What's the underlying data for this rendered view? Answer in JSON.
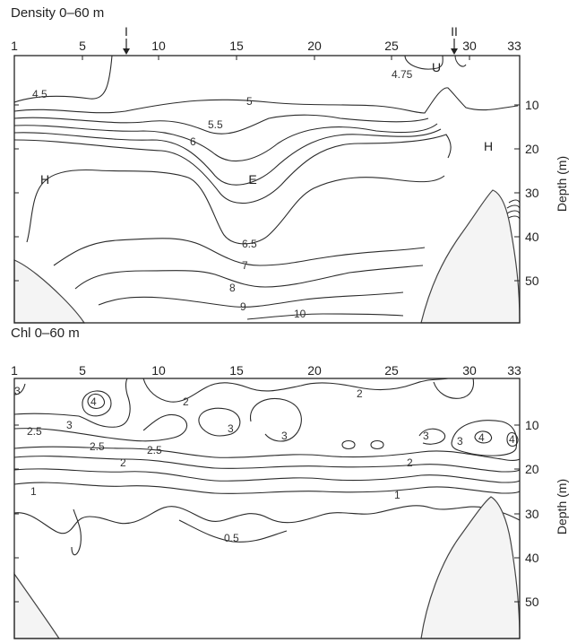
{
  "charts": [
    {
      "title": "Density 0–60 m",
      "station_ticks": [
        "1",
        "5",
        "10",
        "15",
        "20",
        "25",
        "30",
        "33"
      ],
      "depth_ticks": [
        "10",
        "20",
        "30",
        "40",
        "50"
      ],
      "depth_axis_label": "Depth (m)",
      "markers": [
        "I",
        "II"
      ],
      "region_labels": [
        "H",
        "E",
        "H",
        "U"
      ],
      "contour_labels": [
        "4.5",
        "4.75",
        "5",
        "5.5",
        "6",
        "6.5",
        "7",
        "8",
        "9",
        "10"
      ]
    },
    {
      "title": "Chl 0–60 m",
      "station_ticks": [
        "1",
        "5",
        "10",
        "15",
        "20",
        "25",
        "30",
        "33"
      ],
      "depth_ticks": [
        "10",
        "20",
        "30",
        "40",
        "50"
      ],
      "depth_axis_label": "Depth (m)",
      "contour_labels": [
        "3",
        "4",
        "2.5",
        "3",
        "2",
        "2.5",
        "2",
        "2.5",
        "3",
        "3",
        "2",
        "3",
        "4",
        "4",
        "2",
        "1",
        "1",
        "0.5",
        "3"
      ]
    }
  ],
  "chart_data": [
    {
      "type": "heatmap",
      "title": "Density 0–60 m",
      "xlabel": "",
      "ylabel": "Depth (m)",
      "xlim": [
        1,
        33
      ],
      "ylim": [
        0,
        60
      ],
      "x_ticks": [
        1,
        5,
        10,
        15,
        20,
        25,
        30,
        33
      ],
      "y_ticks": [
        10,
        20,
        30,
        40,
        50
      ],
      "contour_levels": [
        4.5,
        4.75,
        5,
        5.5,
        6,
        6.5,
        7,
        8,
        9,
        10
      ],
      "markers": [
        {
          "label": "I",
          "station": 8
        },
        {
          "label": "II",
          "station": 29
        }
      ],
      "regions": [
        {
          "label": "H",
          "station": 3,
          "depth": 25
        },
        {
          "label": "E",
          "station": 16,
          "depth": 25
        },
        {
          "label": "H",
          "station": 31.5,
          "depth": 22
        },
        {
          "label": "U",
          "station": 28,
          "depth": 3
        }
      ]
    },
    {
      "type": "heatmap",
      "title": "Chl 0–60 m",
      "xlabel": "",
      "ylabel": "Depth (m)",
      "xlim": [
        1,
        33
      ],
      "ylim": [
        0,
        60
      ],
      "x_ticks": [
        1,
        5,
        10,
        15,
        20,
        25,
        30,
        33
      ],
      "y_ticks": [
        10,
        20,
        30,
        40,
        50
      ],
      "contour_levels": [
        0.5,
        1,
        2,
        2.5,
        3,
        4
      ]
    }
  ]
}
